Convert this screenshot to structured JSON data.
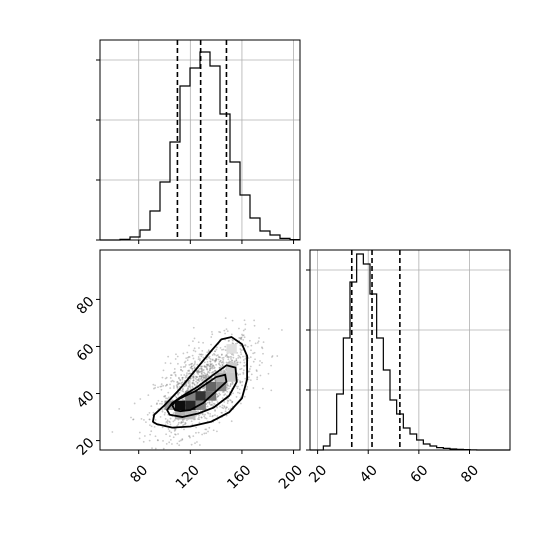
{
  "colors": {
    "line": "#000000",
    "grid": "#b0b0b0",
    "point": "#888888",
    "background": "#ffffff"
  },
  "chart_data": {
    "type": "corner",
    "title": "",
    "grid": true,
    "parameters": [
      "",
      ""
    ],
    "histograms": [
      {
        "panel": "param1-marginal",
        "type": "histogram",
        "xlim": [
          50,
          205
        ],
        "ylim": [
          0,
          1000
        ],
        "bins": [
          50,
          57.75,
          65.5,
          73.25,
          81,
          88.75,
          96.5,
          104.25,
          112,
          119.75,
          127.5,
          135.25,
          143,
          150.75,
          158.5,
          166.25,
          174,
          181.75,
          189.5,
          197.25,
          205
        ],
        "counts": [
          0,
          0,
          3,
          15,
          50,
          145,
          290,
          490,
          770,
          860,
          940,
          870,
          630,
          390,
          225,
          110,
          45,
          25,
          8,
          2
        ],
        "quantiles": [
          110,
          128,
          148
        ],
        "ytick_values": [
          0,
          300,
          600,
          900
        ],
        "xtick_values": [
          80,
          120,
          160,
          200
        ],
        "xtick_labels_shown": false
      },
      {
        "panel": "param2-marginal",
        "type": "histogram",
        "xlim": [
          17,
          96
        ],
        "ylim": [
          0,
          1000
        ],
        "bins": [
          17,
          19.63,
          22.27,
          24.9,
          27.53,
          30.17,
          32.8,
          35.43,
          38.07,
          40.7,
          43.33,
          45.97,
          48.6,
          51.23,
          53.87,
          56.5,
          59.13,
          61.77,
          64.4,
          67.03,
          69.67,
          72.3,
          74.93,
          77.57,
          80.2,
          82.83,
          85.47,
          88.1,
          90.73,
          93.37,
          96
        ],
        "counts": [
          0,
          0,
          20,
          80,
          280,
          560,
          840,
          980,
          930,
          780,
          560,
          400,
          250,
          180,
          110,
          80,
          50,
          30,
          20,
          12,
          8,
          5,
          3,
          2,
          1,
          0,
          0,
          0,
          0,
          0
        ],
        "quantiles": [
          33.5,
          41.5,
          52.5
        ],
        "ytick_values": [
          0,
          300,
          600,
          900
        ],
        "xtick_values": [
          20,
          40,
          60,
          80
        ],
        "xtick_labels": [
          "20",
          "40",
          "60",
          "80"
        ]
      }
    ],
    "scatter_2d": {
      "panel": "joint",
      "type": "scatter",
      "xlim": [
        50,
        205
      ],
      "ylim": [
        16,
        101
      ],
      "xtick_values": [
        80,
        120,
        160,
        200
      ],
      "xtick_labels": [
        "80",
        "120",
        "160",
        "200"
      ],
      "ytick_values": [
        20,
        40,
        60,
        80
      ],
      "ytick_labels": [
        "20",
        "40",
        "60",
        "80"
      ],
      "distribution": {
        "mean": [
          131,
          43
        ],
        "std": [
          19,
          10
        ],
        "correlation": 0.55,
        "n_points": 1400
      },
      "density_cells": [
        {
          "x": [
            108,
            116
          ],
          "y": [
            33,
            37
          ],
          "shade": 0.95
        },
        {
          "x": [
            116,
            124
          ],
          "y": [
            33,
            37
          ],
          "shade": 0.85
        },
        {
          "x": [
            124,
            132
          ],
          "y": [
            37,
            41
          ],
          "shade": 0.8
        },
        {
          "x": [
            132,
            140
          ],
          "y": [
            37,
            41
          ],
          "shade": 0.55
        },
        {
          "x": [
            116,
            124
          ],
          "y": [
            37,
            41
          ],
          "shade": 0.5
        },
        {
          "x": [
            132,
            140
          ],
          "y": [
            41,
            45
          ],
          "shade": 0.6
        },
        {
          "x": [
            140,
            148
          ],
          "y": [
            41,
            45
          ],
          "shade": 0.45
        },
        {
          "x": [
            100,
            108
          ],
          "y": [
            33,
            37
          ],
          "shade": 0.4
        },
        {
          "x": [
            124,
            132
          ],
          "y": [
            33,
            37
          ],
          "shade": 0.5
        },
        {
          "x": [
            140,
            148
          ],
          "y": [
            45,
            49
          ],
          "shade": 0.3
        },
        {
          "x": [
            148,
            156
          ],
          "y": [
            45,
            49
          ],
          "shade": 0.22
        },
        {
          "x": [
            148,
            156
          ],
          "y": [
            49,
            53
          ],
          "shade": 0.2
        },
        {
          "x": [
            148,
            156
          ],
          "y": [
            57,
            61
          ],
          "shade": 0.12
        },
        {
          "x": [
            108,
            116
          ],
          "y": [
            29,
            33
          ],
          "shade": 0.3
        },
        {
          "x": [
            116,
            124
          ],
          "y": [
            29,
            33
          ],
          "shade": 0.25
        }
      ],
      "contours": [
        {
          "level": 1,
          "points": [
            [
              108,
              33
            ],
            [
              112,
              32.5
            ],
            [
              120,
              33
            ],
            [
              130,
              36
            ],
            [
              140,
              41
            ],
            [
              148,
              45
            ],
            [
              147,
              48
            ],
            [
              140,
              47
            ],
            [
              132,
              44
            ],
            [
              124,
              41
            ],
            [
              116,
              39
            ],
            [
              109,
              37
            ],
            [
              106,
              35
            ]
          ]
        },
        {
          "level": 2,
          "points": [
            [
              104,
              31
            ],
            [
              114,
              30
            ],
            [
              126,
              31.5
            ],
            [
              138,
              34
            ],
            [
              150,
              39
            ],
            [
              156,
              45
            ],
            [
              155,
              51
            ],
            [
              148,
              52
            ],
            [
              138,
              48
            ],
            [
              126,
              43
            ],
            [
              114,
              39
            ],
            [
              106,
              36
            ],
            [
              102,
              33
            ]
          ]
        },
        {
          "level": 3,
          "points": [
            [
              94,
              27
            ],
            [
              106,
              25.5
            ],
            [
              120,
              26
            ],
            [
              136,
              28
            ],
            [
              150,
              32
            ],
            [
              160,
              38
            ],
            [
              164,
              46
            ],
            [
              164,
              56
            ],
            [
              160,
              61
            ],
            [
              152,
              64
            ],
            [
              144,
              63
            ],
            [
              136,
              58
            ],
            [
              124,
              50
            ],
            [
              112,
              42
            ],
            [
              100,
              35
            ],
            [
              92,
              31
            ],
            [
              91,
              28
            ]
          ]
        }
      ]
    }
  }
}
